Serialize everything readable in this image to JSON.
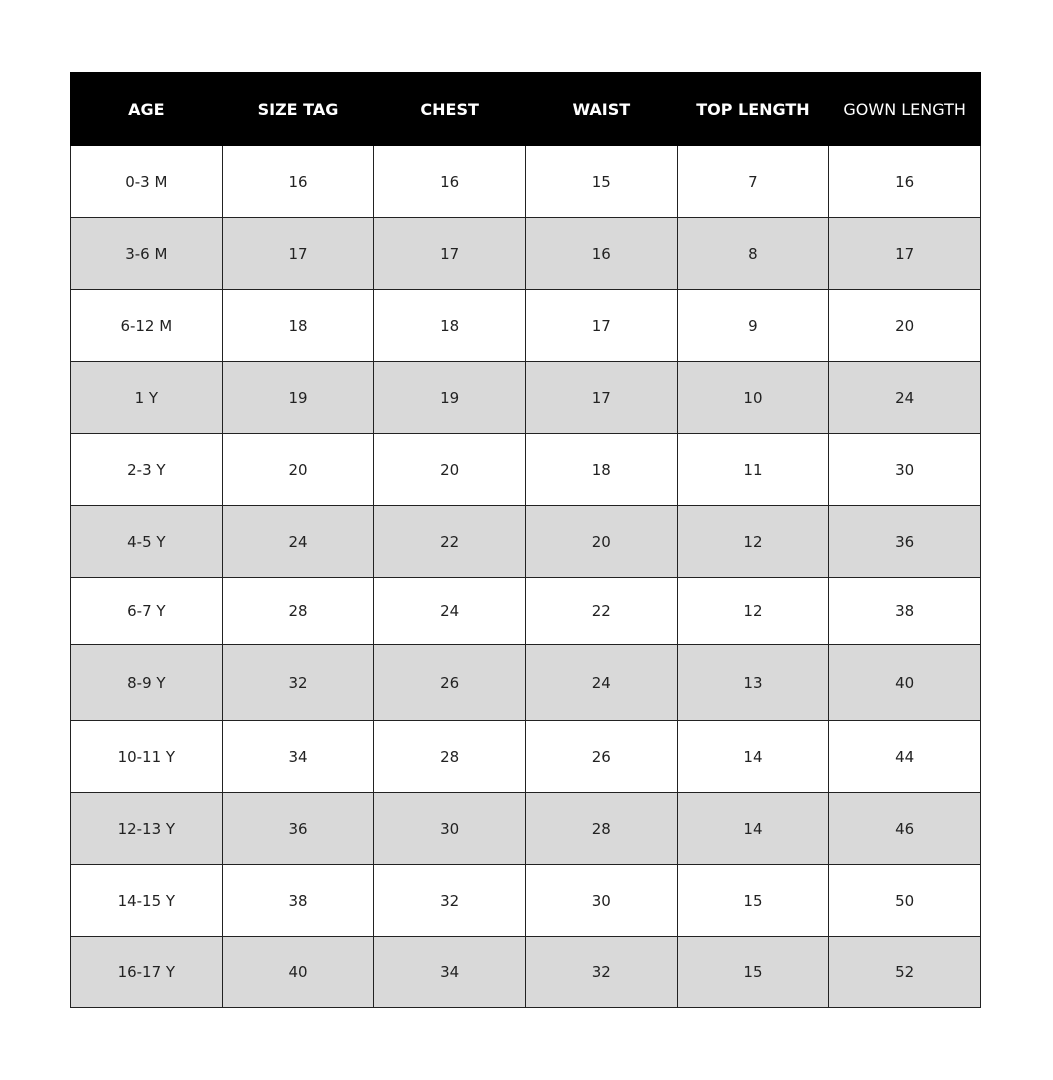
{
  "table": {
    "headers": [
      "AGE",
      "SIZE TAG",
      "CHEST",
      "WAIST",
      "TOP LENGTH",
      "GOWN LENGTH"
    ],
    "rows": [
      [
        "0-3 M",
        16,
        16,
        15,
        7,
        16
      ],
      [
        "3-6 M",
        17,
        17,
        16,
        8,
        17
      ],
      [
        "6-12 M",
        18,
        18,
        17,
        9,
        20
      ],
      [
        "1 Y",
        19,
        19,
        17,
        10,
        24
      ],
      [
        "2-3 Y",
        20,
        20,
        18,
        11,
        30
      ],
      [
        "4-5 Y",
        24,
        22,
        20,
        12,
        36
      ],
      [
        "6-7 Y",
        28,
        24,
        22,
        12,
        38
      ],
      [
        "8-9 Y",
        32,
        26,
        24,
        13,
        40
      ],
      [
        "10-11 Y",
        34,
        28,
        26,
        14,
        44
      ],
      [
        "12-13 Y",
        36,
        30,
        28,
        14,
        46
      ],
      [
        "14-15 Y",
        38,
        32,
        30,
        15,
        50
      ],
      [
        "16-17 Y",
        40,
        34,
        32,
        15,
        52
      ]
    ]
  }
}
